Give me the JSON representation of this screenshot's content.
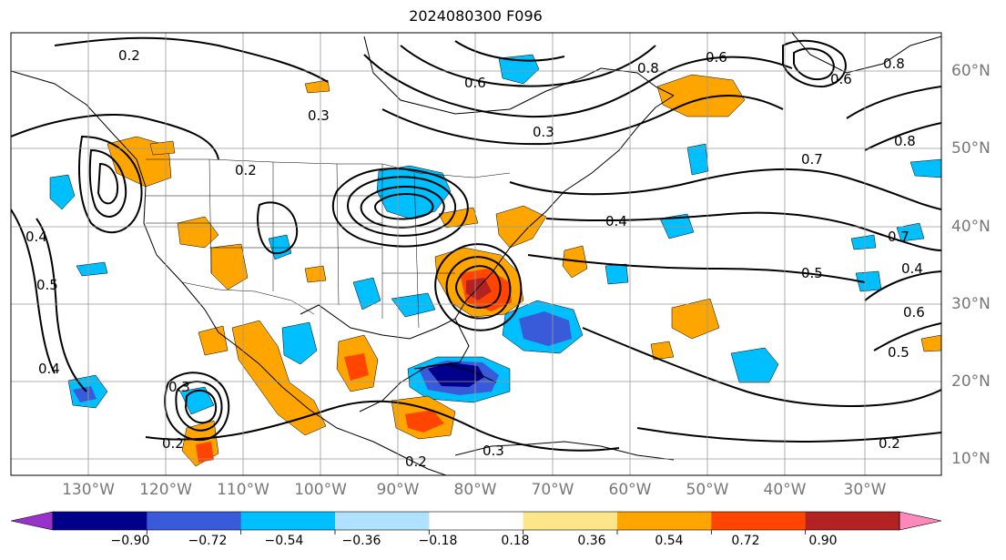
{
  "title": "2024080300 F096",
  "colors": {
    "land_outline": "#000000",
    "grid": "#999999",
    "contour": "#000000",
    "axis_label": "#777777"
  },
  "longitude_labels": [
    "130°W",
    "120°W",
    "110°W",
    "100°W",
    "90°W",
    "80°W",
    "70°W",
    "60°W",
    "50°W",
    "40°W",
    "30°W"
  ],
  "latitude_labels": [
    "60°N",
    "50°N",
    "40°N",
    "30°N",
    "20°N",
    "10°N"
  ],
  "contour_labels": [
    "0.2",
    "0.6",
    "0.8",
    "0.6",
    "0.8",
    "0.6",
    "0.3",
    "0.3",
    "0.7",
    "0.8",
    "0.4",
    "0.2",
    "0.4",
    "0.5",
    "0.4",
    "0.7",
    "0.5",
    "0.4",
    "0.6",
    "0.5",
    "0.3",
    "0.2",
    "0.2",
    "0.3",
    "0.2"
  ],
  "colorbar": {
    "colors": [
      "#9932cc",
      "#00008b",
      "#3a5bd9",
      "#00bfff",
      "#b0e2ff",
      "#ffffff",
      "#fde68a",
      "#ffa500",
      "#ff4500",
      "#b22222",
      "#ff88bb"
    ],
    "tick_labels": [
      "−0.90",
      "−0.72",
      "−0.54",
      "−0.36",
      "−0.18",
      "0.18",
      "0.36",
      "0.54",
      "0.72",
      "0.90"
    ]
  }
}
